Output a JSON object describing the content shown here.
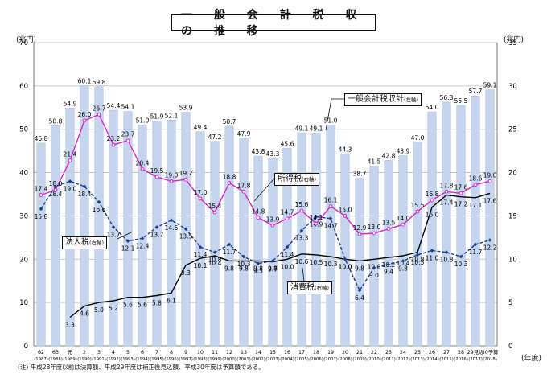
{
  "title": "一 般 会 計 税 収 の 推 移",
  "left_unit": "(兆円)",
  "right_unit": "(兆円)",
  "x_unit": "(年度)",
  "footnote": "(注) 平成28年度以前は決算額、平成29年度は補正後見込額、平成30年度は予算額である。",
  "legend_callouts": {
    "total": {
      "name": "一般会計税収計",
      "axis": "(左軸)"
    },
    "income": {
      "name": "所得税",
      "axis": "(右軸)"
    },
    "corporate": {
      "name": "法人税",
      "axis": "(右軸)"
    },
    "consumption": {
      "name": "消費税",
      "axis": "(右軸)"
    }
  },
  "colors": {
    "bar": "#c5d5ee",
    "bar_edge": "#a9bedf",
    "income": "#d625c8",
    "corporate": "#1a3f8a",
    "consumption": "#000000",
    "grid": "#bcbcbc"
  },
  "chart_data": {
    "type": "bar",
    "categories": [
      {
        "era": "62",
        "year": "(1987)"
      },
      {
        "era": "63",
        "year": "(1988)"
      },
      {
        "era": "元",
        "year": "(1989)"
      },
      {
        "era": "2",
        "year": "(1990)"
      },
      {
        "era": "3",
        "year": "(1991)"
      },
      {
        "era": "4",
        "year": "(1992)"
      },
      {
        "era": "5",
        "year": "(1993)"
      },
      {
        "era": "6",
        "year": "(1994)"
      },
      {
        "era": "7",
        "year": "(1995)"
      },
      {
        "era": "8",
        "year": "(1996)"
      },
      {
        "era": "9",
        "year": "(1997)"
      },
      {
        "era": "10",
        "year": "(1998)"
      },
      {
        "era": "11",
        "year": "(1999)"
      },
      {
        "era": "12",
        "year": "(2000)"
      },
      {
        "era": "13",
        "year": "(2001)"
      },
      {
        "era": "14",
        "year": "(2002)"
      },
      {
        "era": "15",
        "year": "(2003)"
      },
      {
        "era": "16",
        "year": "(2004)"
      },
      {
        "era": "17",
        "year": "(2005)"
      },
      {
        "era": "18",
        "year": "(2006)"
      },
      {
        "era": "19",
        "year": "(2007)"
      },
      {
        "era": "20",
        "year": "(2008)"
      },
      {
        "era": "21",
        "year": "(2009)"
      },
      {
        "era": "22",
        "year": "(2010)"
      },
      {
        "era": "23",
        "year": "(2011)"
      },
      {
        "era": "24",
        "year": "(2012)"
      },
      {
        "era": "25",
        "year": "(2013)"
      },
      {
        "era": "26",
        "year": "(2014)"
      },
      {
        "era": "27",
        "year": "(2015)"
      },
      {
        "era": "28",
        "year": "(2016)"
      },
      {
        "era": "29見込",
        "year": "(2017)"
      },
      {
        "era": "30予算",
        "year": "(2018)"
      }
    ],
    "ylim_left": [
      0,
      70
    ],
    "ylim_right": [
      0,
      35
    ],
    "left_ticks": [
      0,
      10,
      20,
      30,
      40,
      50,
      60,
      70
    ],
    "right_ticks": [
      0,
      5,
      10,
      15,
      20,
      25,
      30,
      35
    ],
    "grid": true,
    "series": [
      {
        "name": "一般会計税収計",
        "axis": "left",
        "type": "bar",
        "values": [
          46.8,
          50.8,
          54.9,
          60.1,
          59.8,
          54.4,
          54.1,
          51.0,
          51.9,
          52.1,
          53.9,
          49.4,
          47.2,
          50.7,
          47.9,
          43.8,
          43.3,
          45.6,
          49.1,
          49.1,
          51.0,
          44.3,
          38.7,
          41.5,
          42.8,
          43.9,
          47.0,
          54.0,
          56.3,
          55.5,
          57.7,
          59.1
        ],
        "labels": [
          "46.8",
          "50.8",
          "54.9",
          "60.1",
          "59.8",
          "54.4",
          "54.1",
          "51.0",
          "51.9",
          "52.1",
          "53.9",
          "49.4",
          "47.2",
          "50.7",
          "47.9",
          "43.8",
          "43.3",
          "45.6",
          "49.1",
          "49.1",
          "51.0",
          "44.3",
          "38.7",
          "41.5",
          "42.8",
          "43.9",
          "47.0",
          "54.0",
          "56.3",
          "55.5",
          "57.7",
          "59.1"
        ]
      },
      {
        "name": "所得税",
        "axis": "right",
        "type": "line",
        "values": [
          17.4,
          18.0,
          21.4,
          26.0,
          26.7,
          23.2,
          23.7,
          20.4,
          19.5,
          19.0,
          19.2,
          17.0,
          15.4,
          18.8,
          17.8,
          14.8,
          13.9,
          14.7,
          15.6,
          14.1,
          16.1,
          15.0,
          12.9,
          13.0,
          13.5,
          14.0,
          15.5,
          16.8,
          17.8,
          17.6,
          18.6,
          19.0
        ],
        "labels": [
          "17.4",
          "18.0",
          "21.4",
          "26.0",
          "26.7",
          "23.2",
          "23.7",
          "20.4",
          "19.5",
          "19.0",
          "19.2",
          "17.0",
          "15.4",
          "18.8",
          "17.8",
          "14.8",
          "13.9",
          "14.7",
          "15.6",
          "14.1",
          "16.1",
          "15.0",
          "12.9",
          "13.0",
          "13.5",
          "14.0",
          "15.5",
          "16.8",
          "17.8",
          "17.6",
          "18.6",
          "19.0"
        ]
      },
      {
        "name": "法人税",
        "axis": "right",
        "type": "line",
        "values": [
          15.8,
          18.4,
          19.0,
          18.4,
          16.6,
          13.7,
          12.1,
          12.4,
          13.7,
          14.5,
          13.5,
          11.4,
          10.8,
          11.7,
          10.3,
          9.5,
          9.8,
          11.4,
          13.3,
          14.9,
          14.7,
          10.0,
          6.4,
          9.0,
          9.4,
          9.8,
          10.5,
          11.0,
          10.8,
          10.3,
          11.7,
          12.2
        ],
        "labels": [
          "15.8",
          "18.4",
          "19.0",
          "18.4",
          "16.6",
          "13.7",
          "12.1",
          "12.4",
          "13.7",
          "14.5",
          "13.5",
          "11.4",
          "10.8",
          "11.7",
          "10.3",
          "9.5",
          "9.8",
          "11.4",
          "13.3",
          "14.9",
          "14.7",
          "10.0",
          "6.4",
          "9.0",
          "9.4",
          "9.8",
          "10.5",
          "11.0",
          "10.8",
          "10.3",
          "11.7",
          "12.2"
        ]
      },
      {
        "name": "消費税",
        "axis": "right",
        "type": "line",
        "values": [
          null,
          null,
          3.3,
          4.6,
          5.0,
          5.2,
          5.6,
          5.6,
          5.8,
          6.1,
          9.3,
          10.1,
          10.4,
          9.8,
          9.8,
          9.8,
          9.7,
          10.0,
          10.6,
          10.5,
          10.3,
          10.0,
          9.8,
          10.0,
          10.2,
          10.4,
          10.8,
          16.0,
          17.4,
          17.2,
          17.1,
          17.6
        ],
        "labels": [
          null,
          null,
          "3.3",
          "4.6",
          "5.0",
          "5.2",
          "5.6",
          "5.6",
          "5.8",
          "6.1",
          "9.3",
          "10.1",
          "10.4",
          "9.8",
          "9.8",
          "9.8",
          "9.7",
          "10.0",
          "10.6",
          "10.5",
          "10.3",
          "10.0",
          "9.8",
          "10.0",
          "10.2",
          "10.4",
          "10.8",
          "16.0",
          "17.4",
          "17.2",
          "17.1",
          "17.6"
        ]
      }
    ]
  }
}
